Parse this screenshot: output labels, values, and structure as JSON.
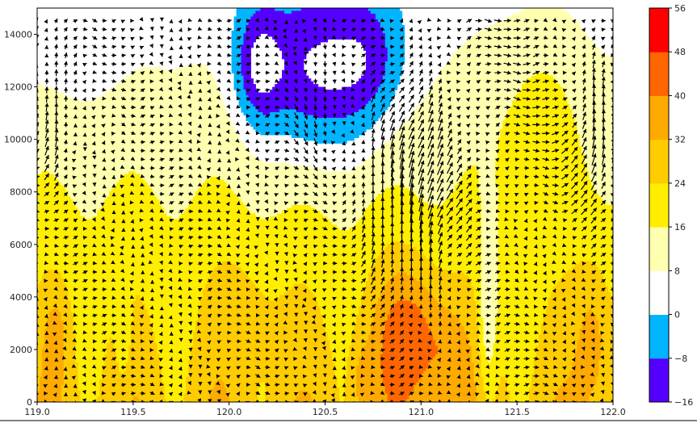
{
  "chart_data": {
    "type": "heatmap",
    "title": "",
    "xlabel": "",
    "ylabel": "",
    "xlim": [
      119.0,
      122.0
    ],
    "ylim": [
      0,
      15000
    ],
    "x_ticks": [
      {
        "value": 119.0,
        "label": "119.0"
      },
      {
        "value": 119.5,
        "label": "119.5"
      },
      {
        "value": 120.0,
        "label": "120.0"
      },
      {
        "value": 120.5,
        "label": "120.5"
      },
      {
        "value": 121.0,
        "label": "121.0"
      },
      {
        "value": 121.5,
        "label": "121.5"
      },
      {
        "value": 122.0,
        "label": "122.0"
      }
    ],
    "y_ticks": [
      {
        "value": 0,
        "label": "0"
      },
      {
        "value": 2000,
        "label": "2000"
      },
      {
        "value": 4000,
        "label": "4000"
      },
      {
        "value": 6000,
        "label": "6000"
      },
      {
        "value": 8000,
        "label": "8000"
      },
      {
        "value": 10000,
        "label": "10000"
      },
      {
        "value": 12000,
        "label": "12000"
      },
      {
        "value": 14000,
        "label": "14000"
      }
    ],
    "colorbar": {
      "ticks": [
        -16,
        -8,
        0,
        8,
        16,
        24,
        32,
        40,
        48,
        56
      ],
      "labels": [
        "−16",
        "−8",
        "0",
        "8",
        "16",
        "24",
        "32",
        "40",
        "48",
        "56"
      ],
      "colors": [
        "#5500ff",
        "#00b4ff",
        "#ffffff",
        "#ffffb0",
        "#ffee00",
        "#ffcc00",
        "#ffaa00",
        "#ff6600",
        "#ff0000"
      ]
    },
    "overlay": "vector arrows (wind)",
    "grid": false,
    "legend": "colorbar-right"
  }
}
